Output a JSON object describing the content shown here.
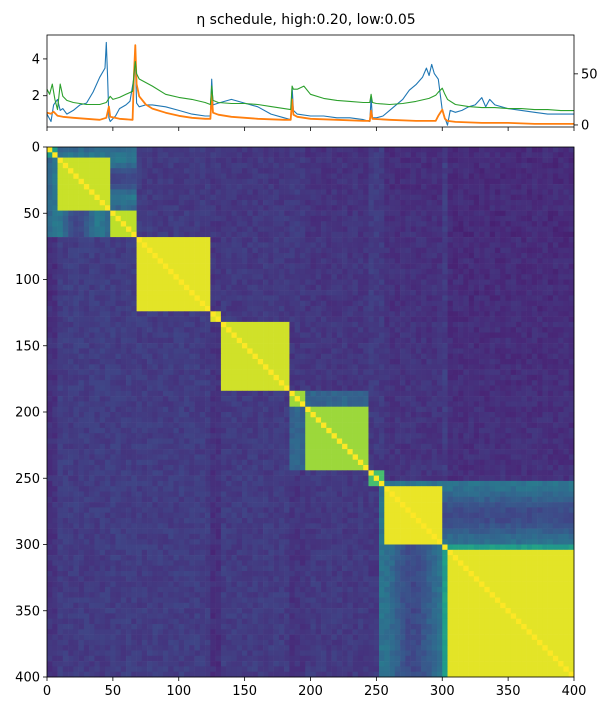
{
  "chart_data": [
    {
      "type": "line",
      "title": "η schedule, high:0.20, low:0.05",
      "xlim": [
        0,
        400
      ],
      "y_left": {
        "lim": [
          0.3,
          5.3
        ],
        "ticks": [
          2,
          4
        ],
        "tick_labels": [
          "2",
          "4"
        ]
      },
      "y_right": {
        "lim": [
          -2,
          88
        ],
        "ticks": [
          0,
          50
        ],
        "tick_labels": [
          "0",
          "50"
        ]
      },
      "series": [
        {
          "axis": "left",
          "color": "#1f77b4",
          "points": [
            [
              0,
              1.0
            ],
            [
              3,
              0.6
            ],
            [
              5,
              1.5
            ],
            [
              8,
              1.8
            ],
            [
              10,
              1.2
            ],
            [
              12,
              1.3
            ],
            [
              15,
              1.0
            ],
            [
              20,
              1.2
            ],
            [
              25,
              1.5
            ],
            [
              30,
              1.6
            ],
            [
              35,
              2.2
            ],
            [
              40,
              3.0
            ],
            [
              44,
              3.5
            ],
            [
              45,
              4.9
            ],
            [
              46,
              3.0
            ],
            [
              47,
              0.8
            ],
            [
              48,
              0.6
            ],
            [
              52,
              0.9
            ],
            [
              55,
              1.3
            ],
            [
              60,
              1.5
            ],
            [
              63,
              1.7
            ],
            [
              66,
              3.0
            ],
            [
              67,
              3.9
            ],
            [
              68,
              1.6
            ],
            [
              70,
              1.4
            ],
            [
              75,
              1.5
            ],
            [
              80,
              1.5
            ],
            [
              90,
              1.4
            ],
            [
              100,
              1.2
            ],
            [
              110,
              1.0
            ],
            [
              120,
              0.9
            ],
            [
              124,
              0.9
            ],
            [
              125,
              2.9
            ],
            [
              126,
              1.5
            ],
            [
              130,
              1.6
            ],
            [
              140,
              1.8
            ],
            [
              150,
              1.6
            ],
            [
              160,
              1.4
            ],
            [
              170,
              1.0
            ],
            [
              180,
              0.8
            ],
            [
              185,
              0.7
            ],
            [
              186,
              2.5
            ],
            [
              187,
              1.2
            ],
            [
              190,
              1.0
            ],
            [
              200,
              0.9
            ],
            [
              210,
              0.9
            ],
            [
              220,
              0.8
            ],
            [
              230,
              0.8
            ],
            [
              240,
              0.7
            ],
            [
              245,
              0.6
            ],
            [
              246,
              1.9
            ],
            [
              247,
              0.8
            ],
            [
              250,
              0.8
            ],
            [
              255,
              0.9
            ],
            [
              260,
              1.2
            ],
            [
              265,
              1.5
            ],
            [
              270,
              1.8
            ],
            [
              275,
              2.3
            ],
            [
              280,
              2.6
            ],
            [
              285,
              3.0
            ],
            [
              288,
              3.5
            ],
            [
              290,
              3.1
            ],
            [
              292,
              3.7
            ],
            [
              294,
              3.2
            ],
            [
              297,
              2.9
            ],
            [
              300,
              1.2
            ],
            [
              302,
              0.8
            ],
            [
              304,
              0.4
            ],
            [
              306,
              1.2
            ],
            [
              310,
              1.1
            ],
            [
              315,
              1.2
            ],
            [
              320,
              1.4
            ],
            [
              325,
              1.5
            ],
            [
              330,
              1.9
            ],
            [
              333,
              1.4
            ],
            [
              336,
              1.8
            ],
            [
              340,
              1.5
            ],
            [
              350,
              1.3
            ],
            [
              360,
              1.2
            ],
            [
              370,
              1.1
            ],
            [
              380,
              1.0
            ],
            [
              390,
              1.0
            ],
            [
              400,
              1.0
            ]
          ]
        },
        {
          "axis": "right",
          "color": "#ff7f0e",
          "points": [
            [
              0,
              12
            ],
            [
              3,
              11
            ],
            [
              5,
              13
            ],
            [
              8,
              9
            ],
            [
              12,
              8
            ],
            [
              20,
              7
            ],
            [
              30,
              6
            ],
            [
              40,
              5
            ],
            [
              45,
              7
            ],
            [
              47,
              18
            ],
            [
              48,
              8
            ],
            [
              55,
              6
            ],
            [
              65,
              5
            ],
            [
              66,
              50
            ],
            [
              67,
              78
            ],
            [
              68,
              40
            ],
            [
              70,
              28
            ],
            [
              75,
              20
            ],
            [
              80,
              16
            ],
            [
              90,
              12
            ],
            [
              100,
              9
            ],
            [
              110,
              7
            ],
            [
              120,
              6
            ],
            [
              124,
              6
            ],
            [
              125,
              30
            ],
            [
              126,
              12
            ],
            [
              130,
              10
            ],
            [
              140,
              8
            ],
            [
              160,
              6
            ],
            [
              180,
              5
            ],
            [
              185,
              5
            ],
            [
              186,
              25
            ],
            [
              187,
              10
            ],
            [
              190,
              8
            ],
            [
              200,
              6
            ],
            [
              220,
              5
            ],
            [
              240,
              4
            ],
            [
              245,
              4
            ],
            [
              246,
              14
            ],
            [
              247,
              6
            ],
            [
              260,
              5
            ],
            [
              280,
              4
            ],
            [
              295,
              4
            ],
            [
              297,
              9
            ],
            [
              300,
              15
            ],
            [
              302,
              6
            ],
            [
              304,
              4
            ],
            [
              310,
              3
            ],
            [
              330,
              2
            ],
            [
              350,
              2
            ],
            [
              370,
              1
            ],
            [
              400,
              1
            ]
          ]
        },
        {
          "axis": "right",
          "color": "#2ca02c",
          "points": [
            [
              0,
              35
            ],
            [
              2,
              30
            ],
            [
              4,
              40
            ],
            [
              6,
              25
            ],
            [
              8,
              15
            ],
            [
              10,
              40
            ],
            [
              12,
              28
            ],
            [
              15,
              24
            ],
            [
              20,
              22
            ],
            [
              30,
              20
            ],
            [
              40,
              20
            ],
            [
              45,
              22
            ],
            [
              48,
              28
            ],
            [
              50,
              25
            ],
            [
              55,
              27
            ],
            [
              60,
              30
            ],
            [
              65,
              33
            ],
            [
              66,
              50
            ],
            [
              67,
              62
            ],
            [
              68,
              50
            ],
            [
              70,
              45
            ],
            [
              80,
              38
            ],
            [
              90,
              30
            ],
            [
              100,
              27
            ],
            [
              110,
              25
            ],
            [
              120,
              22
            ],
            [
              124,
              20
            ],
            [
              125,
              38
            ],
            [
              126,
              24
            ],
            [
              130,
              22
            ],
            [
              140,
              21
            ],
            [
              150,
              21
            ],
            [
              160,
              20
            ],
            [
              170,
              18
            ],
            [
              180,
              16
            ],
            [
              185,
              15
            ],
            [
              186,
              38
            ],
            [
              187,
              35
            ],
            [
              190,
              35
            ],
            [
              195,
              38
            ],
            [
              200,
              30
            ],
            [
              210,
              26
            ],
            [
              220,
              24
            ],
            [
              230,
              23
            ],
            [
              240,
              22
            ],
            [
              245,
              22
            ],
            [
              246,
              30
            ],
            [
              247,
              22
            ],
            [
              250,
              21
            ],
            [
              260,
              20
            ],
            [
              270,
              21
            ],
            [
              280,
              23
            ],
            [
              290,
              26
            ],
            [
              295,
              29
            ],
            [
              297,
              32
            ],
            [
              300,
              36
            ],
            [
              302,
              30
            ],
            [
              304,
              25
            ],
            [
              310,
              20
            ],
            [
              320,
              18
            ],
            [
              330,
              17
            ],
            [
              340,
              17
            ],
            [
              350,
              16
            ],
            [
              360,
              16
            ],
            [
              370,
              15
            ],
            [
              380,
              15
            ],
            [
              390,
              14
            ],
            [
              400,
              14
            ]
          ]
        }
      ]
    },
    {
      "type": "heatmap",
      "colormap": "viridis",
      "xlim": [
        0,
        400
      ],
      "ylim": [
        400,
        0
      ],
      "x_ticks": [
        0,
        50,
        100,
        150,
        200,
        250,
        300,
        350,
        400
      ],
      "x_tick_labels": [
        "0",
        "50",
        "100",
        "150",
        "200",
        "250",
        "300",
        "350",
        "400"
      ],
      "y_ticks": [
        0,
        50,
        100,
        150,
        200,
        250,
        300,
        350,
        400
      ],
      "y_tick_labels": [
        "0",
        "50",
        "100",
        "150",
        "200",
        "250",
        "300",
        "350",
        "400"
      ],
      "segments": [
        {
          "range": [
            0,
            10
          ],
          "level": 0.55
        },
        {
          "range": [
            10,
            48
          ],
          "level": 0.92
        },
        {
          "range": [
            48,
            50
          ],
          "level": 0.45
        },
        {
          "range": [
            50,
            67
          ],
          "level": 0.9
        },
        {
          "range": [
            67,
            70
          ],
          "level": 0.35
        },
        {
          "range": [
            70,
            125
          ],
          "level": 0.96
        },
        {
          "range": [
            125,
            132
          ],
          "level": 0.95
        },
        {
          "range": [
            132,
            185
          ],
          "level": 0.93
        },
        {
          "range": [
            185,
            195
          ],
          "level": 0.85
        },
        {
          "range": [
            195,
            245
          ],
          "level": 0.85
        },
        {
          "range": [
            245,
            258
          ],
          "level": 0.7
        },
        {
          "range": [
            258,
            302
          ],
          "level": 0.97
        },
        {
          "range": [
            302,
            305
          ],
          "level": 0.45
        },
        {
          "range": [
            305,
            400
          ],
          "level": 0.96
        }
      ]
    }
  ]
}
